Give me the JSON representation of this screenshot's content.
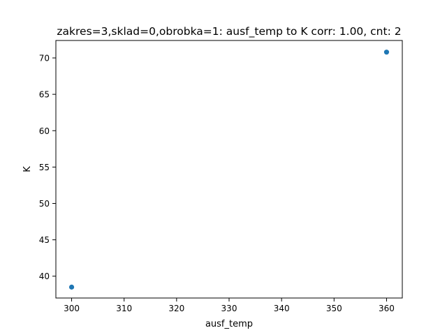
{
  "chart_data": {
    "type": "scatter",
    "title": "zakres=3,sklad=0,obrobka=1: ausf_temp to K corr: 1.00, cnt: 2",
    "xlabel": "ausf_temp",
    "ylabel": "K",
    "x": [
      300,
      360
    ],
    "y": [
      38.5,
      70.8
    ],
    "xlim": [
      297,
      363
    ],
    "ylim": [
      37.0,
      72.4
    ],
    "xticks": [
      300,
      310,
      320,
      330,
      340,
      350,
      360
    ],
    "yticks": [
      40,
      45,
      50,
      55,
      60,
      65,
      70
    ],
    "grid": false,
    "marker_color": "#1f77b4"
  }
}
